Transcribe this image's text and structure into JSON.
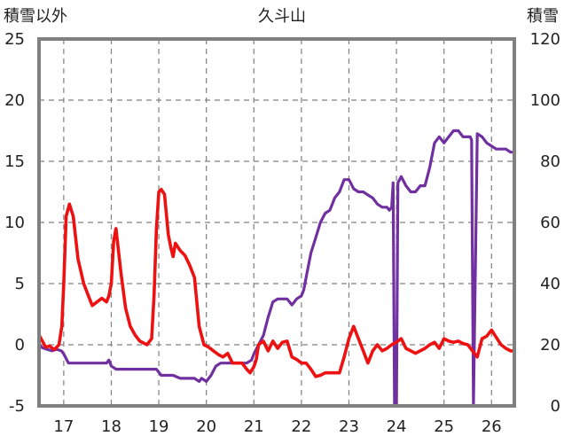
{
  "chart_data": {
    "type": "line",
    "title": "久斗山",
    "ylabel_left": "積雪以外",
    "ylabel_right": "積雪",
    "x_categories": [
      "17",
      "18",
      "19",
      "20",
      "21",
      "22",
      "23",
      "24",
      "25",
      "26"
    ],
    "ylim_left": [
      -5,
      25
    ],
    "ylim_right": [
      0,
      120
    ],
    "yticks_left": [
      -5,
      0,
      5,
      10,
      15,
      20,
      25
    ],
    "yticks_right": [
      0,
      20,
      40,
      60,
      80,
      100,
      120
    ],
    "grid": true,
    "colors": {
      "left_series": "#ee1111",
      "right_series": "#7030a0",
      "frame": "#808080",
      "grid": "#808080"
    },
    "series": [
      {
        "axis": "left",
        "x": [
          16.48,
          16.55,
          16.62,
          16.7,
          16.8,
          16.9,
          16.96,
          17.0,
          17.05,
          17.12,
          17.2,
          17.3,
          17.42,
          17.52,
          17.6,
          17.7,
          17.8,
          17.9,
          17.95,
          18.0,
          18.05,
          18.1,
          18.2,
          18.3,
          18.4,
          18.5,
          18.6,
          18.75,
          18.85,
          18.9,
          18.95,
          19.0,
          19.05,
          19.12,
          19.2,
          19.25,
          19.3,
          19.35,
          19.45,
          19.55,
          19.65,
          19.75,
          19.85,
          19.95,
          20.05,
          20.15,
          20.25,
          20.35,
          20.45,
          20.55,
          20.65,
          20.75,
          20.85,
          20.92,
          21.0,
          21.05,
          21.1,
          21.2,
          21.3,
          21.4,
          21.5,
          21.6,
          21.7,
          21.8,
          21.9,
          22.0,
          22.1,
          22.2,
          22.3,
          22.4,
          22.5,
          22.6,
          22.7,
          22.8,
          22.9,
          23.0,
          23.1,
          23.2,
          23.3,
          23.4,
          23.5,
          23.6,
          23.7,
          23.8,
          23.9,
          24.0,
          24.1,
          24.2,
          24.3,
          24.4,
          24.5,
          24.6,
          24.7,
          24.8,
          24.9,
          25.0,
          25.1,
          25.2,
          25.3,
          25.4,
          25.5,
          25.6,
          25.7,
          25.8,
          25.9,
          26.0,
          26.1,
          26.2,
          26.3,
          26.4,
          26.45
        ],
        "y": [
          0.8,
          0.3,
          -0.2,
          -0.1,
          -0.4,
          0.0,
          1.5,
          5.0,
          10.5,
          11.5,
          10.5,
          7.0,
          5.0,
          4.0,
          3.2,
          3.5,
          3.8,
          3.5,
          4.0,
          5.0,
          8.5,
          9.5,
          6.0,
          3.0,
          1.5,
          0.8,
          0.3,
          0.0,
          0.5,
          4.0,
          9.5,
          12.5,
          12.7,
          12.3,
          9.0,
          8.0,
          7.2,
          8.3,
          7.7,
          7.3,
          6.5,
          5.5,
          1.5,
          0.0,
          -0.2,
          -0.5,
          -0.8,
          -1.0,
          -0.7,
          -1.5,
          -1.5,
          -1.5,
          -2.0,
          -2.3,
          -1.8,
          -1.2,
          0.0,
          0.3,
          -0.5,
          0.3,
          -0.3,
          0.2,
          0.3,
          -1.0,
          -1.2,
          -1.5,
          -1.5,
          -2.0,
          -2.6,
          -2.5,
          -2.3,
          -2.3,
          -2.3,
          -2.3,
          -1.0,
          0.5,
          1.5,
          0.5,
          -0.5,
          -1.5,
          -0.5,
          0.0,
          -0.5,
          -0.3,
          0.0,
          0.2,
          0.5,
          -0.3,
          -0.5,
          -0.7,
          -0.5,
          -0.3,
          0.0,
          0.2,
          -0.3,
          0.5,
          0.3,
          0.2,
          0.3,
          0.1,
          0.0,
          -0.5,
          -1.0,
          0.5,
          0.7,
          1.2,
          0.6,
          0.0,
          -0.3,
          -0.5,
          -0.5
        ]
      },
      {
        "axis": "right",
        "x": [
          16.48,
          16.55,
          16.65,
          16.75,
          16.85,
          16.95,
          17.0,
          17.1,
          17.3,
          17.5,
          17.7,
          17.9,
          17.95,
          18.0,
          18.1,
          18.2,
          18.4,
          18.6,
          18.8,
          18.95,
          19.05,
          19.15,
          19.3,
          19.45,
          19.6,
          19.75,
          19.85,
          19.9,
          20.0,
          20.1,
          20.2,
          20.3,
          20.4,
          20.5,
          20.6,
          20.7,
          20.85,
          20.95,
          21.0,
          21.1,
          21.2,
          21.3,
          21.4,
          21.5,
          21.6,
          21.7,
          21.8,
          21.9,
          22.0,
          22.05,
          22.1,
          22.15,
          22.2,
          22.3,
          22.4,
          22.5,
          22.6,
          22.7,
          22.8,
          22.9,
          23.0,
          23.1,
          23.2,
          23.3,
          23.4,
          23.5,
          23.6,
          23.7,
          23.8,
          23.85,
          23.9,
          23.93,
          23.96,
          24.0,
          24.03,
          24.1,
          24.2,
          24.3,
          24.4,
          24.5,
          24.6,
          24.7,
          24.8,
          24.9,
          25.0,
          25.1,
          25.2,
          25.3,
          25.4,
          25.5,
          25.52,
          25.55,
          25.58,
          25.62,
          25.7,
          25.8,
          25.9,
          26.0,
          26.1,
          26.2,
          26.3,
          26.4,
          26.45
        ],
        "y": [
          20,
          19,
          18.5,
          18,
          18.5,
          18,
          17,
          14,
          14,
          14,
          14,
          14,
          15,
          13,
          12,
          12,
          12,
          12,
          12,
          12,
          10,
          10,
          10,
          9,
          9,
          9,
          8,
          9,
          8,
          10,
          13,
          14,
          14,
          14,
          14,
          14,
          14,
          15,
          17,
          20,
          23,
          29,
          34,
          35,
          35,
          35,
          33,
          35,
          36,
          38,
          42,
          46,
          50,
          55,
          60,
          63,
          64,
          68,
          70,
          74,
          74,
          71,
          70,
          70,
          69,
          68,
          66,
          65,
          65,
          64,
          65,
          73,
          0,
          0,
          73,
          75,
          72,
          70,
          70,
          72,
          72,
          78,
          86,
          88,
          86,
          88,
          90,
          90,
          88,
          88,
          88,
          88,
          87,
          0,
          89,
          88,
          86,
          85,
          84,
          84,
          84,
          83,
          83
        ]
      }
    ]
  }
}
